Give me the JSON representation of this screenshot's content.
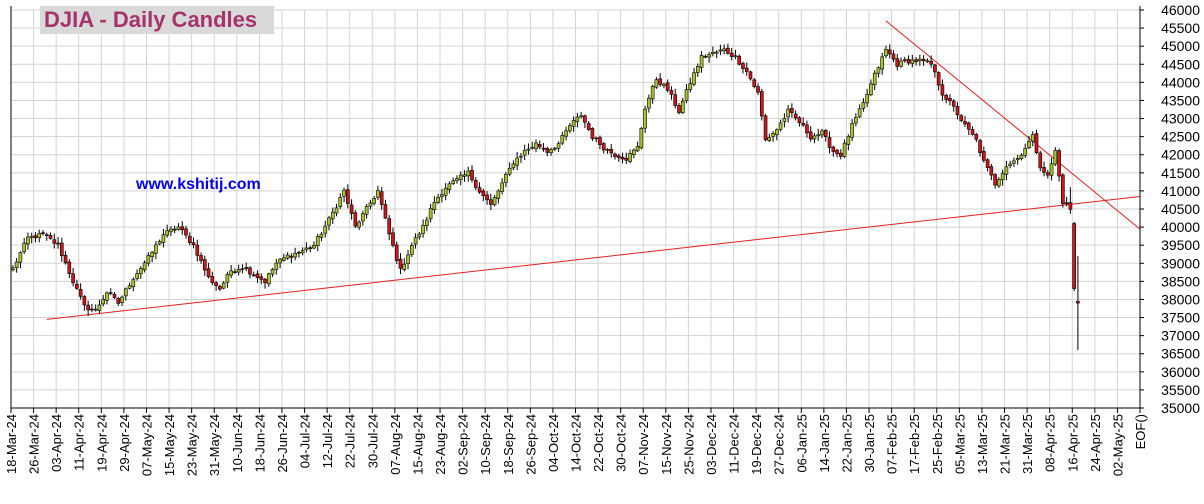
{
  "chart_data": {
    "type": "candlestick",
    "title": "DJIA - Daily Candles",
    "watermark": "www.kshitij.com",
    "y_axis": {
      "min": 35000,
      "max": 46000,
      "step": 500,
      "position": "right",
      "ticks": [
        46000,
        45500,
        45000,
        44500,
        44000,
        43500,
        43000,
        42500,
        42000,
        41500,
        41000,
        40500,
        40000,
        39500,
        39000,
        38500,
        38000,
        37500,
        37000,
        36500,
        36000,
        35500,
        35000
      ]
    },
    "x_axis": {
      "tick_labels": [
        "18-Mar-24",
        "26-Mar-24",
        "03-Apr-24",
        "11-Apr-24",
        "19-Apr-24",
        "29-Apr-24",
        "07-May-24",
        "15-May-24",
        "23-May-24",
        "31-May-24",
        "10-Jun-24",
        "18-Jun-24",
        "26-Jun-24",
        "04-Jul-24",
        "12-Jul-24",
        "22-Jul-24",
        "30-Jul-24",
        "07-Aug-24",
        "15-Aug-24",
        "23-Aug-24",
        "02-Sep-24",
        "10-Sep-24",
        "18-Sep-24",
        "26-Sep-24",
        "04-Oct-24",
        "14-Oct-24",
        "22-Oct-24",
        "30-Oct-24",
        "07-Nov-24",
        "15-Nov-24",
        "25-Nov-24",
        "03-Dec-24",
        "11-Dec-24",
        "19-Dec-24",
        "27-Dec-24",
        "06-Jan-25",
        "14-Jan-25",
        "22-Jan-25",
        "30-Jan-25",
        "07-Feb-25",
        "17-Feb-25",
        "25-Feb-25",
        "05-Mar-25",
        "13-Mar-25",
        "21-Mar-25",
        "31-Mar-25",
        "08-Apr-25",
        "16-Apr-25",
        "24-Apr-25",
        "02-May-25",
        "EOF()"
      ],
      "bars_per_label": 6
    },
    "grid": true,
    "colors": {
      "up": "#a7c62a",
      "down": "#d2141b",
      "trendline": "#e02020",
      "grid": "#d3d3d3"
    },
    "trendlines": [
      {
        "from": {
          "bar": 9,
          "y": 37450
        },
        "to": {
          "bar": 300,
          "y": 40850
        }
      },
      {
        "from": {
          "bar": 232,
          "y": 45700
        },
        "to": {
          "bar": 300,
          "y": 39900
        }
      }
    ],
    "close_anchors": [
      [
        0,
        38850
      ],
      [
        4,
        39700
      ],
      [
        8,
        39800
      ],
      [
        12,
        39500
      ],
      [
        16,
        38500
      ],
      [
        19,
        37800
      ],
      [
        22,
        37700
      ],
      [
        25,
        38200
      ],
      [
        28,
        37900
      ],
      [
        32,
        38600
      ],
      [
        36,
        39150
      ],
      [
        40,
        39800
      ],
      [
        44,
        40000
      ],
      [
        48,
        39500
      ],
      [
        52,
        38600
      ],
      [
        55,
        38300
      ],
      [
        58,
        38800
      ],
      [
        61,
        38900
      ],
      [
        64,
        38700
      ],
      [
        67,
        38500
      ],
      [
        70,
        39000
      ],
      [
        73,
        39200
      ],
      [
        76,
        39300
      ],
      [
        80,
        39500
      ],
      [
        84,
        40200
      ],
      [
        88,
        41000
      ],
      [
        91,
        40000
      ],
      [
        94,
        40500
      ],
      [
        97,
        41000
      ],
      [
        100,
        39800
      ],
      [
        103,
        38800
      ],
      [
        106,
        39500
      ],
      [
        109,
        40000
      ],
      [
        112,
        40700
      ],
      [
        115,
        41100
      ],
      [
        118,
        41300
      ],
      [
        121,
        41500
      ],
      [
        124,
        41000
      ],
      [
        127,
        40600
      ],
      [
        130,
        41200
      ],
      [
        133,
        41800
      ],
      [
        136,
        42100
      ],
      [
        139,
        42300
      ],
      [
        142,
        42100
      ],
      [
        145,
        42300
      ],
      [
        148,
        42800
      ],
      [
        151,
        43100
      ],
      [
        154,
        42500
      ],
      [
        157,
        42200
      ],
      [
        160,
        42000
      ],
      [
        163,
        41900
      ],
      [
        166,
        42200
      ],
      [
        168,
        43300
      ],
      [
        171,
        44100
      ],
      [
        174,
        43800
      ],
      [
        177,
        43200
      ],
      [
        180,
        44000
      ],
      [
        183,
        44700
      ],
      [
        186,
        44800
      ],
      [
        189,
        44900
      ],
      [
        192,
        44700
      ],
      [
        195,
        44300
      ],
      [
        198,
        43700
      ],
      [
        200,
        42400
      ],
      [
        203,
        42700
      ],
      [
        206,
        43200
      ],
      [
        209,
        42900
      ],
      [
        212,
        42500
      ],
      [
        215,
        42600
      ],
      [
        218,
        42100
      ],
      [
        220,
        42000
      ],
      [
        223,
        42800
      ],
      [
        226,
        43400
      ],
      [
        229,
        44200
      ],
      [
        232,
        44900
      ],
      [
        235,
        44500
      ],
      [
        238,
        44600
      ],
      [
        241,
        44600
      ],
      [
        244,
        44500
      ],
      [
        247,
        43700
      ],
      [
        250,
        43300
      ],
      [
        253,
        42800
      ],
      [
        256,
        42400
      ],
      [
        258,
        41800
      ],
      [
        261,
        41200
      ],
      [
        264,
        41700
      ],
      [
        267,
        41900
      ],
      [
        269,
        42200
      ],
      [
        271,
        42500
      ],
      [
        273,
        41700
      ],
      [
        275,
        41400
      ],
      [
        277,
        42100
      ],
      [
        279,
        40700
      ],
      [
        281,
        40500
      ],
      [
        282,
        38300
      ],
      [
        283,
        37900
      ]
    ]
  }
}
